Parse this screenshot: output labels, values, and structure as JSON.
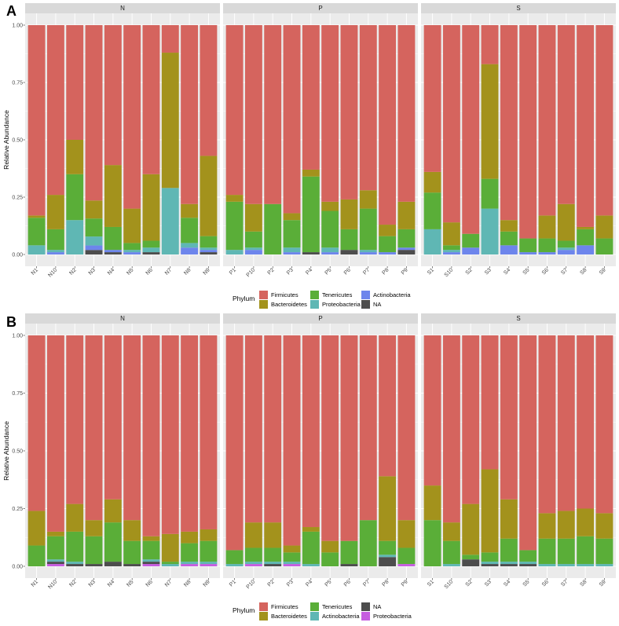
{
  "colors": {
    "Firmicutes": "#D5645E",
    "Bacteroidetes": "#A3921C",
    "Tenericutes": "#5AAE38",
    "Proteobacteria": "#5FB7B4",
    "Actinobacteria": "#6D85EC",
    "NA": "#4D4D4D",
    "panel_bg": "#EBEBEB",
    "strip_bg": "#D9D9D9",
    "grid": "#FFFFFF"
  },
  "chart_data": [
    {
      "type": "bar",
      "stacked": true,
      "panel_label": "A",
      "title": "",
      "xlabel": "",
      "ylabel": "Relative Abundance",
      "ylim": [
        0,
        1
      ],
      "yticks": [
        0,
        0.25,
        0.5,
        0.75,
        1
      ],
      "ytick_labels": [
        "0.00",
        "0.25",
        "0.50",
        "0.75",
        "1.00"
      ],
      "legend_title": "Phylum",
      "legend_position": "bottom",
      "legend_items": [
        "Firmicutes",
        "Bacteroidetes",
        "Tenericutes",
        "Proteobacteria",
        "Actinobacteria",
        "NA"
      ],
      "stack_order": [
        "NA",
        "Actinobacteria",
        "Proteobacteria",
        "Tenericutes",
        "Bacteroidetes",
        "Firmicutes"
      ],
      "facets": [
        {
          "name": "N",
          "categories": [
            "N1",
            "N10",
            "N2",
            "N3",
            "N4",
            "N5",
            "N6",
            "N7",
            "N8",
            "N9"
          ],
          "series": [
            {
              "name": "NA",
              "values": [
                0,
                0,
                0,
                0.02,
                0.01,
                0,
                0.01,
                0,
                0,
                0.01
              ]
            },
            {
              "name": "Actinobacteria",
              "values": [
                0,
                0.01,
                0,
                0.02,
                0.01,
                0.01,
                0,
                0,
                0.03,
                0.01
              ]
            },
            {
              "name": "Proteobacteria",
              "values": [
                0.04,
                0.01,
                0.15,
                0.04,
                0,
                0.01,
                0.02,
                0.29,
                0.02,
                0.01
              ]
            },
            {
              "name": "Tenericutes",
              "values": [
                0.12,
                0.09,
                0.2,
                0.08,
                0.1,
                0.03,
                0.03,
                0,
                0.11,
                0.05
              ]
            },
            {
              "name": "Bacteroidetes",
              "values": [
                0.01,
                0.15,
                0.15,
                0.08,
                0.27,
                0.15,
                0.29,
                0.59,
                0.06,
                0.35
              ]
            },
            {
              "name": "Firmicutes",
              "values": [
                0.83,
                0.74,
                0.5,
                0.78,
                0.61,
                0.8,
                0.65,
                0.12,
                0.78,
                0.57
              ]
            }
          ]
        },
        {
          "name": "P",
          "categories": [
            "P1",
            "P10",
            "P2",
            "P3",
            "P4",
            "P5",
            "P6",
            "P7",
            "P8",
            "P9"
          ],
          "series": [
            {
              "name": "NA",
              "values": [
                0,
                0,
                0,
                0,
                0.01,
                0,
                0.02,
                0,
                0,
                0.02
              ]
            },
            {
              "name": "Actinobacteria",
              "values": [
                0,
                0.02,
                0,
                0.01,
                0,
                0.01,
                0,
                0.01,
                0.01,
                0.01
              ]
            },
            {
              "name": "Proteobacteria",
              "values": [
                0.02,
                0.01,
                0,
                0.02,
                0,
                0.02,
                0,
                0.01,
                0,
                0
              ]
            },
            {
              "name": "Tenericutes",
              "values": [
                0.21,
                0.07,
                0.22,
                0.12,
                0.33,
                0.16,
                0.09,
                0.18,
                0.07,
                0.08
              ]
            },
            {
              "name": "Bacteroidetes",
              "values": [
                0.03,
                0.12,
                0,
                0.03,
                0.03,
                0.04,
                0.13,
                0.08,
                0.05,
                0.12
              ]
            },
            {
              "name": "Firmicutes",
              "values": [
                0.74,
                0.78,
                0.78,
                0.82,
                0.63,
                0.77,
                0.76,
                0.72,
                0.87,
                0.77
              ]
            }
          ]
        },
        {
          "name": "S",
          "categories": [
            "S1",
            "S10",
            "S2",
            "S3",
            "S4",
            "S5",
            "S6",
            "S7",
            "S8",
            "S9"
          ],
          "series": [
            {
              "name": "NA",
              "values": [
                0,
                0,
                0,
                0,
                0,
                0,
                0,
                0,
                0,
                0
              ]
            },
            {
              "name": "Actinobacteria",
              "values": [
                0,
                0.01,
                0.03,
                0,
                0.04,
                0.01,
                0.01,
                0.02,
                0.04,
                0
              ]
            },
            {
              "name": "Proteobacteria",
              "values": [
                0.11,
                0.01,
                0,
                0.2,
                0,
                0,
                0,
                0.01,
                0,
                0
              ]
            },
            {
              "name": "Tenericutes",
              "values": [
                0.16,
                0.02,
                0.06,
                0.13,
                0.06,
                0.06,
                0.06,
                0.03,
                0.07,
                0.07
              ]
            },
            {
              "name": "Bacteroidetes",
              "values": [
                0.09,
                0.1,
                0,
                0.5,
                0.05,
                0,
                0.1,
                0.16,
                0.01,
                0.1
              ]
            },
            {
              "name": "Firmicutes",
              "values": [
                0.64,
                0.86,
                0.91,
                0.17,
                0.85,
                0.93,
                0.83,
                0.78,
                0.88,
                0.83
              ]
            }
          ]
        }
      ]
    },
    {
      "type": "bar",
      "stacked": true,
      "panel_label": "B",
      "title": "",
      "xlabel": "",
      "ylabel": "Relative Abundance",
      "ylim": [
        0,
        1
      ],
      "yticks": [
        0,
        0.25,
        0.5,
        0.75,
        1
      ],
      "ytick_labels": [
        "0.00",
        "0.25",
        "0.50",
        "0.75",
        "1.00"
      ],
      "legend_title": "Phylum",
      "legend_position": "bottom",
      "legend_items": [
        "Firmicutes",
        "Bacteroidetes",
        "Tenericutes",
        "Actinobacteria",
        "NA",
        "Proteobacteria"
      ],
      "legend_colors": {
        "Firmicutes": "#D5645E",
        "Bacteroidetes": "#A3921C",
        "Tenericutes": "#5AAE38",
        "Actinobacteria": "#5FB7B4",
        "NA": "#4D4D4D",
        "Proteobacteria": "#C65DE0"
      },
      "stack_order": [
        "Proteobacteria",
        "NA",
        "Actinobacteria",
        "Tenericutes",
        "Bacteroidetes",
        "Firmicutes"
      ],
      "facets": [
        {
          "name": "N",
          "categories": [
            "N1",
            "N10",
            "N2",
            "N3",
            "N4",
            "N5",
            "N6",
            "N7",
            "N8",
            "N9"
          ],
          "series": [
            {
              "name": "Proteobacteria",
              "values": [
                0,
                0.01,
                0,
                0,
                0,
                0,
                0.01,
                0,
                0.01,
                0.01
              ]
            },
            {
              "name": "NA",
              "values": [
                0,
                0.01,
                0.01,
                0.01,
                0.02,
                0.01,
                0.01,
                0,
                0,
                0
              ]
            },
            {
              "name": "Actinobacteria",
              "values": [
                0,
                0.01,
                0.01,
                0,
                0,
                0,
                0.01,
                0.01,
                0.01,
                0.01
              ]
            },
            {
              "name": "Tenericutes",
              "values": [
                0.09,
                0.1,
                0.13,
                0.12,
                0.17,
                0.1,
                0.08,
                0.01,
                0.08,
                0.09
              ]
            },
            {
              "name": "Bacteroidetes",
              "values": [
                0.15,
                0.02,
                0.12,
                0.07,
                0.1,
                0.09,
                0.02,
                0.12,
                0.05,
                0.05
              ]
            },
            {
              "name": "Firmicutes",
              "values": [
                0.76,
                0.85,
                0.73,
                0.8,
                0.71,
                0.8,
                0.87,
                0.86,
                0.85,
                0.84
              ]
            }
          ]
        },
        {
          "name": "P",
          "categories": [
            "P1",
            "P10",
            "P2",
            "P3",
            "P4",
            "P5",
            "P6",
            "P7",
            "P8",
            "P9"
          ],
          "series": [
            {
              "name": "Proteobacteria",
              "values": [
                0,
                0.01,
                0,
                0.01,
                0,
                0,
                0,
                0,
                0,
                0.01
              ]
            },
            {
              "name": "NA",
              "values": [
                0,
                0,
                0.01,
                0,
                0,
                0,
                0.01,
                0,
                0.04,
                0
              ]
            },
            {
              "name": "Actinobacteria",
              "values": [
                0.01,
                0.01,
                0.01,
                0.01,
                0.01,
                0,
                0,
                0,
                0.01,
                0
              ]
            },
            {
              "name": "Tenericutes",
              "values": [
                0.06,
                0.06,
                0.06,
                0.04,
                0.14,
                0.06,
                0.1,
                0.2,
                0.06,
                0.07
              ]
            },
            {
              "name": "Bacteroidetes",
              "values": [
                0,
                0.11,
                0.11,
                0.03,
                0.02,
                0.05,
                0,
                0,
                0.28,
                0.12
              ]
            },
            {
              "name": "Firmicutes",
              "values": [
                0.93,
                0.81,
                0.81,
                0.91,
                0.83,
                0.89,
                0.89,
                0.8,
                0.61,
                0.8
              ]
            }
          ]
        },
        {
          "name": "S",
          "categories": [
            "S1",
            "S10",
            "S2",
            "S3",
            "S4",
            "S5",
            "S6",
            "S7",
            "S8",
            "S9"
          ],
          "series": [
            {
              "name": "Proteobacteria",
              "values": [
                0,
                0,
                0,
                0,
                0,
                0,
                0,
                0,
                0,
                0
              ]
            },
            {
              "name": "NA",
              "values": [
                0,
                0,
                0.03,
                0.01,
                0.01,
                0.01,
                0,
                0,
                0,
                0
              ]
            },
            {
              "name": "Actinobacteria",
              "values": [
                0,
                0.01,
                0,
                0.01,
                0.01,
                0.01,
                0.01,
                0.01,
                0.01,
                0.01
              ]
            },
            {
              "name": "Tenericutes",
              "values": [
                0.2,
                0.1,
                0.02,
                0.04,
                0.1,
                0.05,
                0.11,
                0.11,
                0.12,
                0.11
              ]
            },
            {
              "name": "Bacteroidetes",
              "values": [
                0.15,
                0.08,
                0.22,
                0.36,
                0.17,
                0,
                0.11,
                0.12,
                0.12,
                0.11
              ]
            },
            {
              "name": "Firmicutes",
              "values": [
                0.65,
                0.81,
                0.73,
                0.58,
                0.71,
                0.93,
                0.77,
                0.76,
                0.75,
                0.77
              ]
            }
          ]
        }
      ]
    }
  ]
}
